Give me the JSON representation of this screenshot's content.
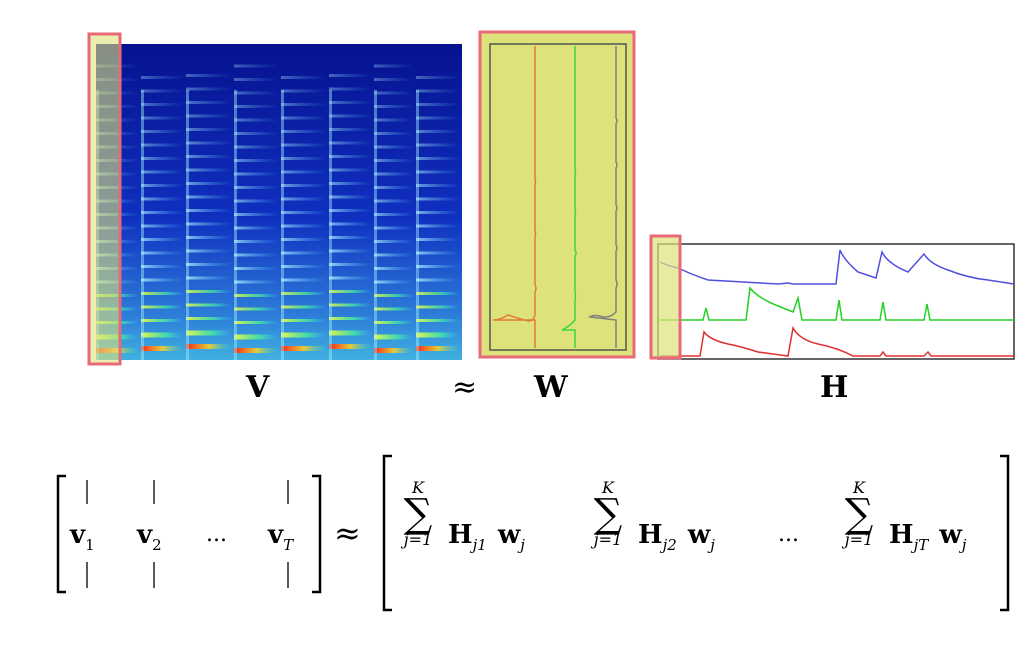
{
  "top_labels": {
    "v": "V",
    "approx": "≈",
    "w": "W",
    "h": "H"
  },
  "colors": {
    "highlight_fill": "#dde27a",
    "highlight_border": "#e86a78",
    "basis_1": "#e37a3a",
    "basis_2": "#3ad83a",
    "basis_3": "#808080",
    "activation_blue": "#5050e0",
    "activation_green": "#22d022",
    "activation_red": "#e03030"
  },
  "equation": {
    "lhs_cols": [
      {
        "symbol": "v",
        "sub": "1"
      },
      {
        "symbol": "v",
        "sub": "2"
      },
      {
        "symbol": "v",
        "sub": "T"
      }
    ],
    "lhs_dots": "...",
    "approx": "≈",
    "rhs_terms": [
      {
        "upper": "K",
        "lower": "j=1",
        "h": "H",
        "h_sub": "j1",
        "w": "w",
        "w_sub": "j"
      },
      {
        "upper": "K",
        "lower": "j=1",
        "h": "H",
        "h_sub": "j2",
        "w": "w",
        "w_sub": "j"
      },
      {
        "upper": "K",
        "lower": "j=1",
        "h": "H",
        "h_sub": "jT",
        "w": "w",
        "w_sub": "j"
      }
    ],
    "rhs_dots": "...",
    "sigma": "∑"
  }
}
